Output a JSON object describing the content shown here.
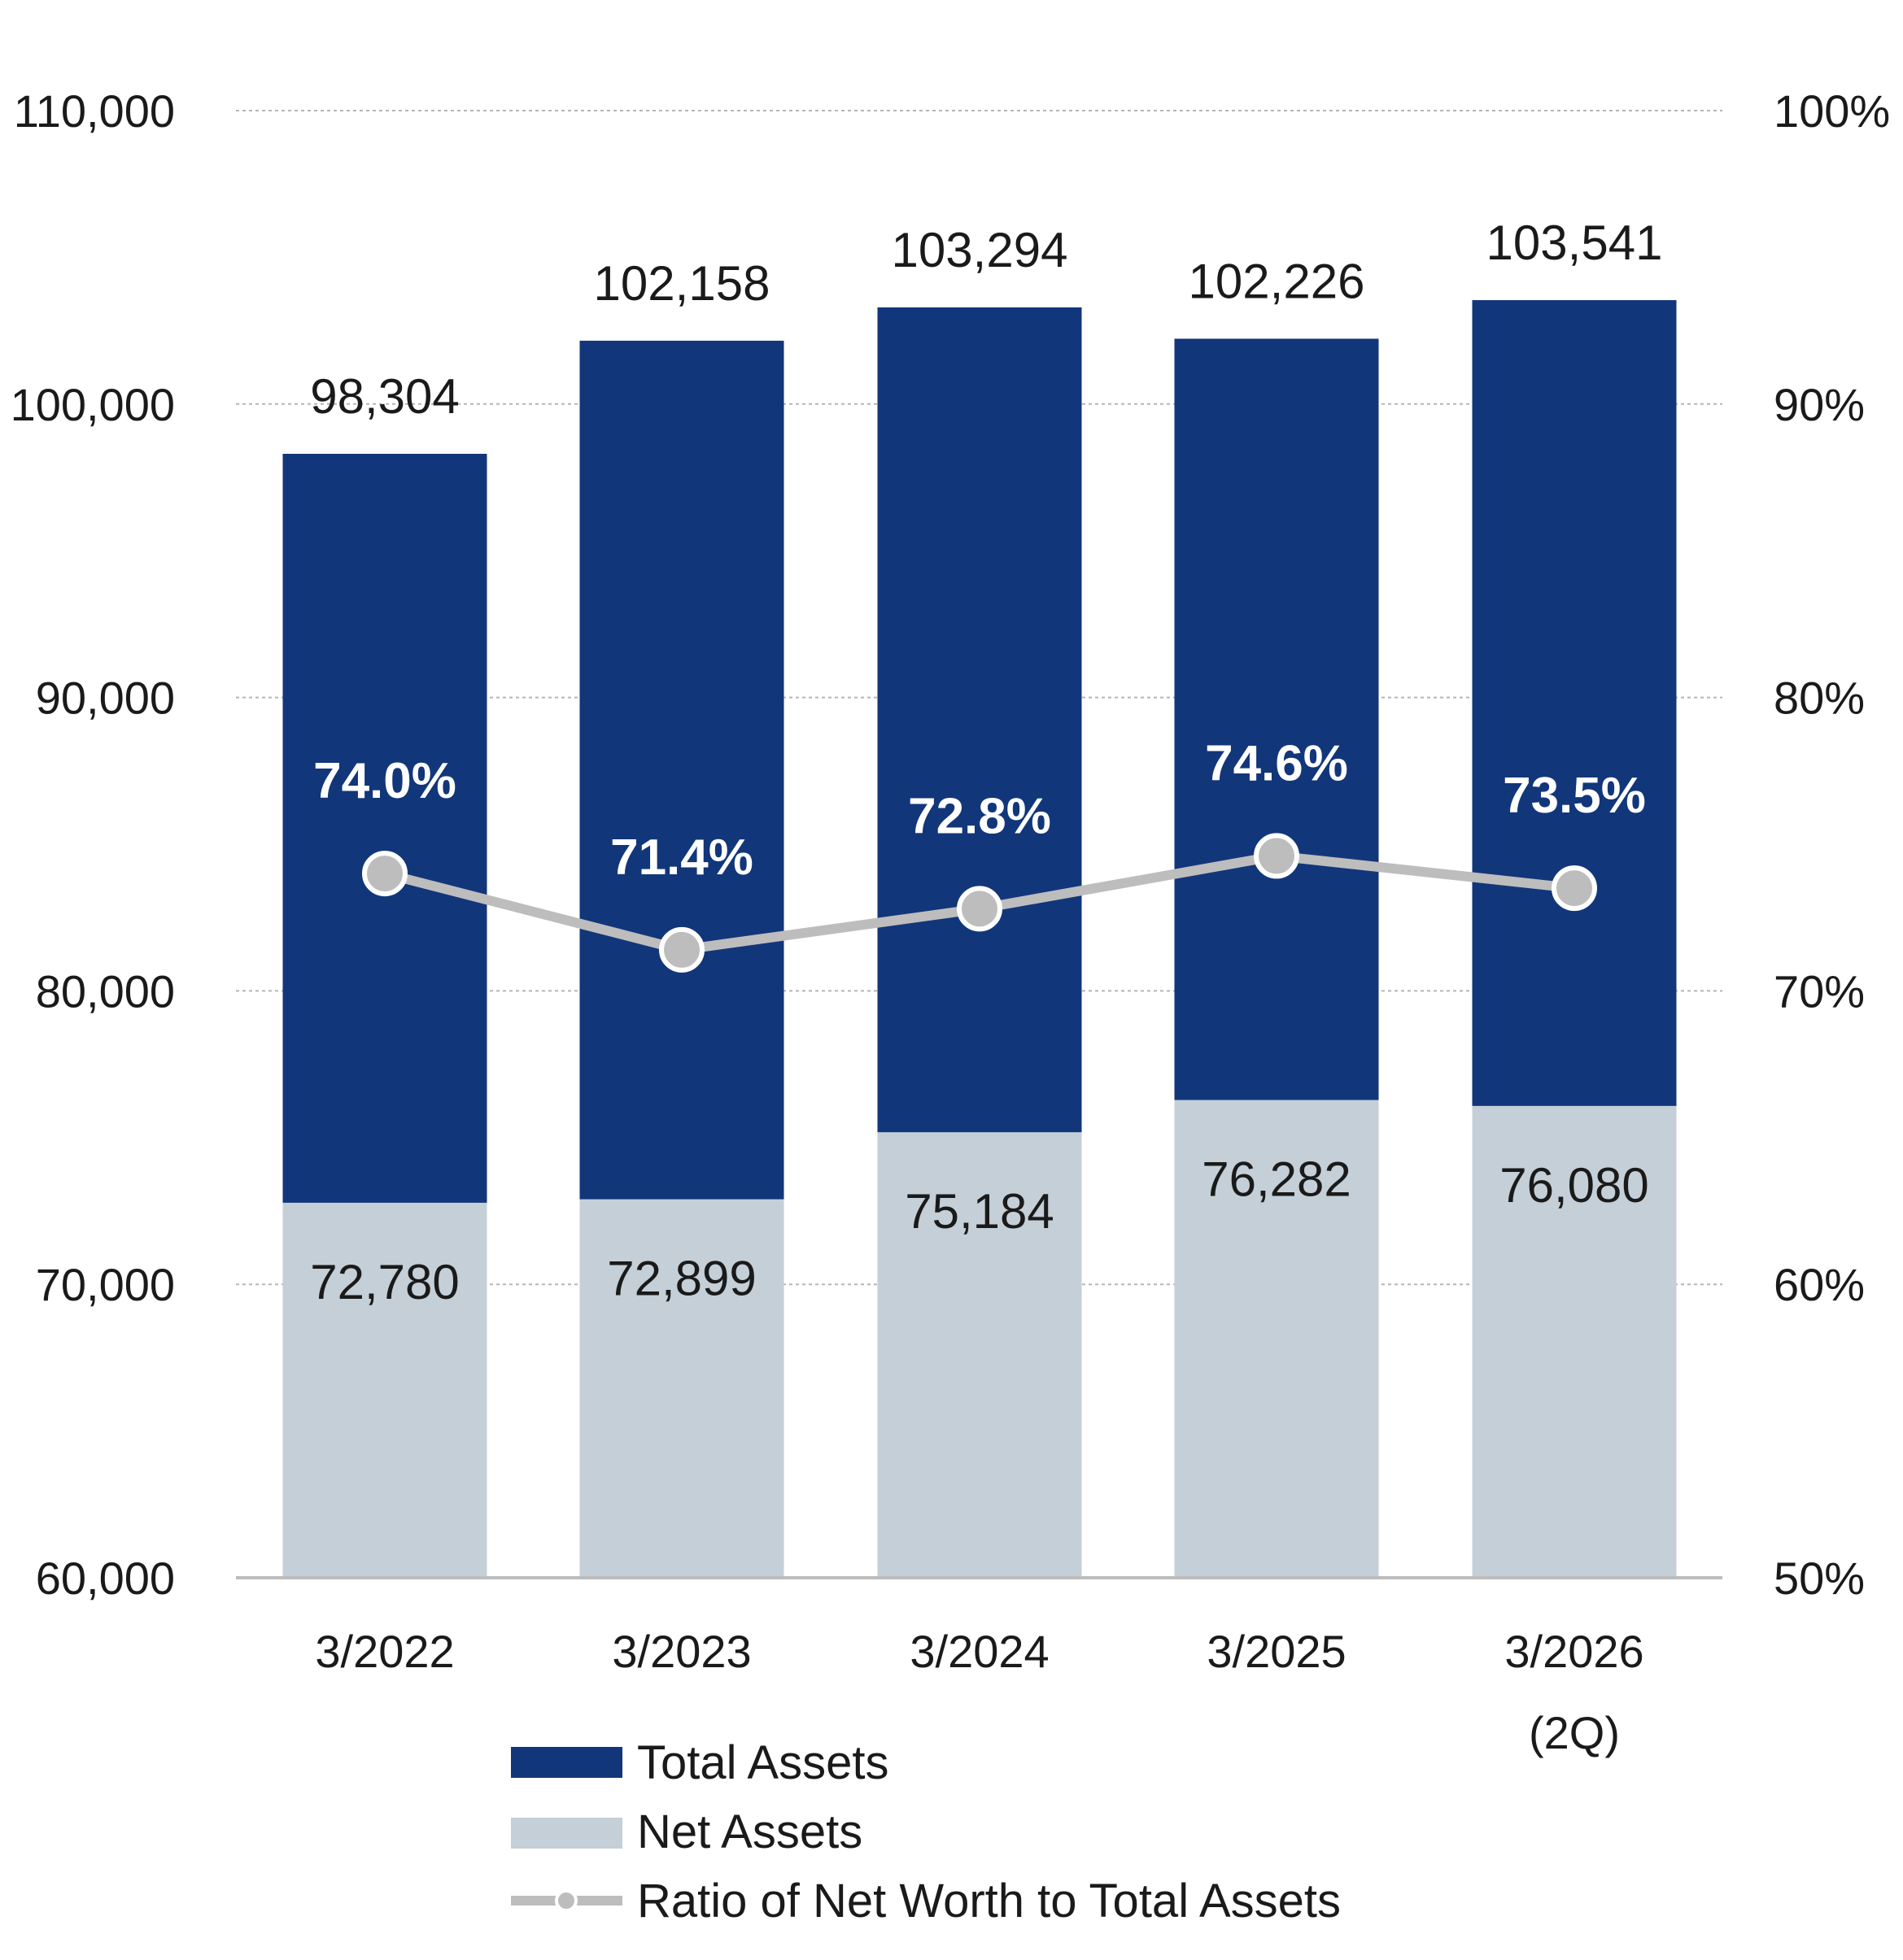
{
  "chart_data": {
    "type": "bar",
    "stacked_overlay": true,
    "categories": [
      "3/2022",
      "3/2023",
      "3/2024",
      "3/2025",
      "3/2026"
    ],
    "category_sublabels": [
      "",
      "",
      "",
      "",
      "(2Q)"
    ],
    "series": [
      {
        "name": "Total Assets",
        "type": "bar",
        "axis": "left",
        "color": "#12367a",
        "values": [
          98304,
          102158,
          103294,
          102226,
          103541
        ],
        "labels": [
          "98,304",
          "102,158",
          "103,294",
          "102,226",
          "103,541"
        ]
      },
      {
        "name": "Net Assets",
        "type": "bar",
        "axis": "left",
        "color": "#c5cfd7",
        "values": [
          72780,
          72899,
          75184,
          76282,
          76080
        ],
        "labels": [
          "72,780",
          "72,899",
          "75,184",
          "76,282",
          "76,080"
        ]
      },
      {
        "name": "Ratio of Net Worth to Total Assets",
        "type": "line",
        "axis": "right",
        "color": "#bdbdbd",
        "values": [
          74.0,
          71.4,
          72.8,
          74.6,
          73.5
        ],
        "labels": [
          "74.0%",
          "71.4%",
          "72.8%",
          "74.6%",
          "73.5%"
        ]
      }
    ],
    "y_left": {
      "min": 60000,
      "max": 110000,
      "ticks": [
        60000,
        70000,
        80000,
        90000,
        100000,
        110000
      ],
      "tick_labels": [
        "60,000",
        "70,000",
        "80,000",
        "90,000",
        "100,000",
        "110,000"
      ]
    },
    "y_right": {
      "min": 50,
      "max": 100,
      "ticks": [
        50,
        60,
        70,
        80,
        90,
        100
      ],
      "tick_labels": [
        "50%",
        "60%",
        "70%",
        "80%",
        "90%",
        "100%"
      ]
    },
    "grid": true,
    "legend_position": "bottom"
  }
}
